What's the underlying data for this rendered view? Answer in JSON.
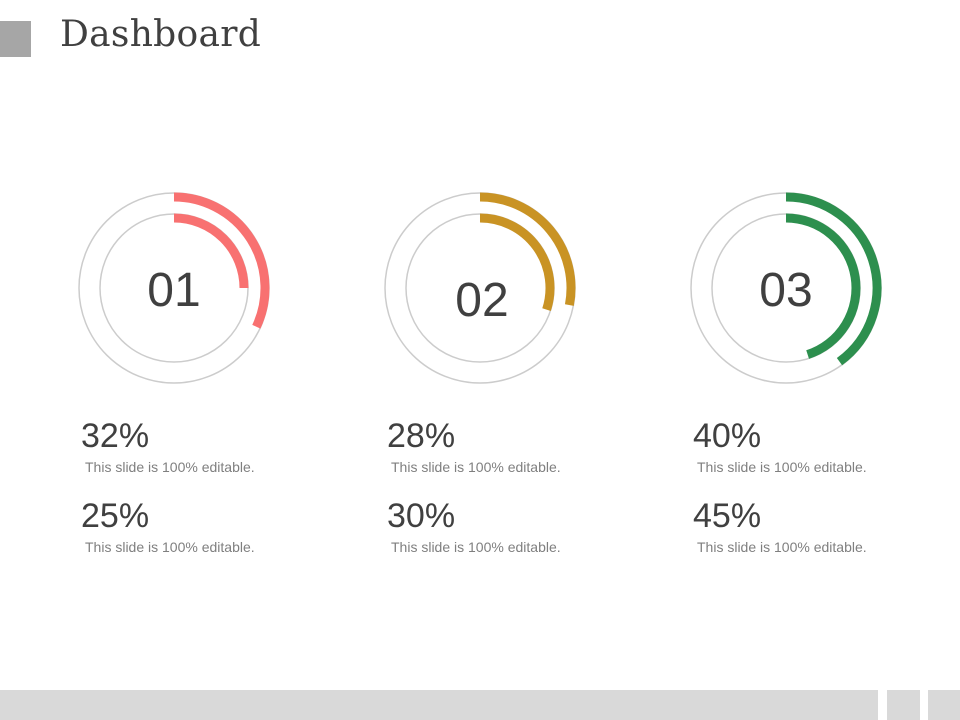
{
  "header": {
    "title": "Dashboard"
  },
  "chart_data": {
    "type": "radial-progress",
    "groups": [
      {
        "label": "01",
        "color": "#f87171",
        "outer": {
          "value": 32,
          "text": "32%",
          "caption": "This slide is 100% editable."
        },
        "inner": {
          "value": 25,
          "text": "25%",
          "caption": "This slide is 100% editable."
        }
      },
      {
        "label": "02",
        "color": "#c99324",
        "outer": {
          "value": 28,
          "text": "28%",
          "caption": "This slide is 100% editable."
        },
        "inner": {
          "value": 30,
          "text": "30%",
          "caption": "This slide is 100% editable."
        }
      },
      {
        "label": "03",
        "color": "#2d8f4e",
        "outer": {
          "value": 40,
          "text": "40%",
          "caption": "This slide is 100% editable."
        },
        "inner": {
          "value": 45,
          "text": "45%",
          "caption": "This slide is 100% editable."
        }
      }
    ],
    "track_color": "#cccccc"
  }
}
